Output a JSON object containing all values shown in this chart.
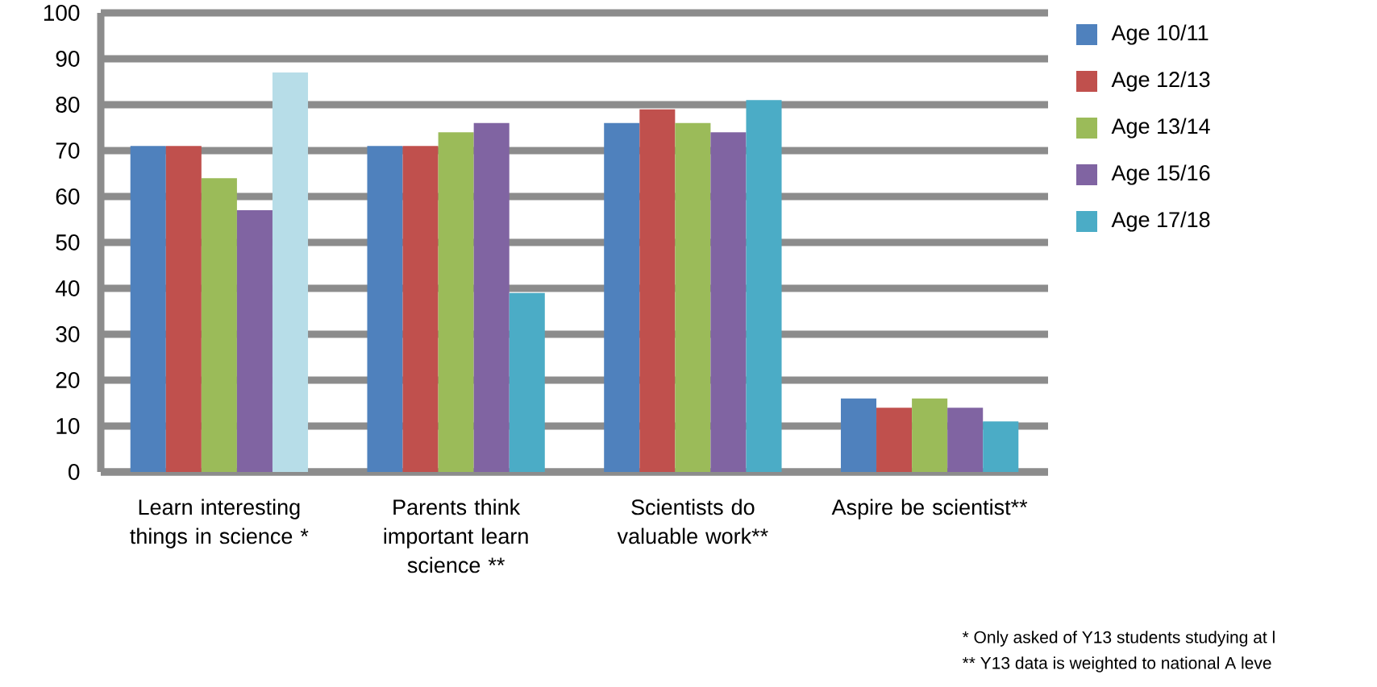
{
  "chart_data": {
    "type": "bar",
    "categories": [
      "Learn interesting things in science *",
      "Parents think important learn science **",
      "Scientists do valuable work**",
      "Aspire be scientist**"
    ],
    "series": [
      {
        "name": "Age 10/11",
        "color": "#4f81bd",
        "values": [
          71,
          71,
          76,
          16
        ]
      },
      {
        "name": "Age 12/13",
        "color": "#c0504d",
        "values": [
          71,
          71,
          79,
          14
        ]
      },
      {
        "name": "Age 13/14",
        "color": "#9bbb59",
        "values": [
          64,
          74,
          76,
          16
        ]
      },
      {
        "name": "Age 15/16",
        "color": "#8064a2",
        "values": [
          57,
          76,
          74,
          14
        ]
      },
      {
        "name": "Age 17/18",
        "color": "#4bacc6",
        "colors": [
          "#b7dde8",
          "#4bacc6",
          "#4bacc6",
          "#4bacc6"
        ],
        "values": [
          87,
          39,
          81,
          11
        ]
      }
    ],
    "ylim": [
      0,
      100
    ],
    "yticks": [
      0,
      10,
      20,
      30,
      40,
      50,
      60,
      70,
      80,
      90,
      100
    ],
    "grid": "y",
    "legend": "right",
    "annotations": [
      "* Only asked of Y13 students studying at l",
      "** Y13 data is weighted to national A leve"
    ]
  }
}
